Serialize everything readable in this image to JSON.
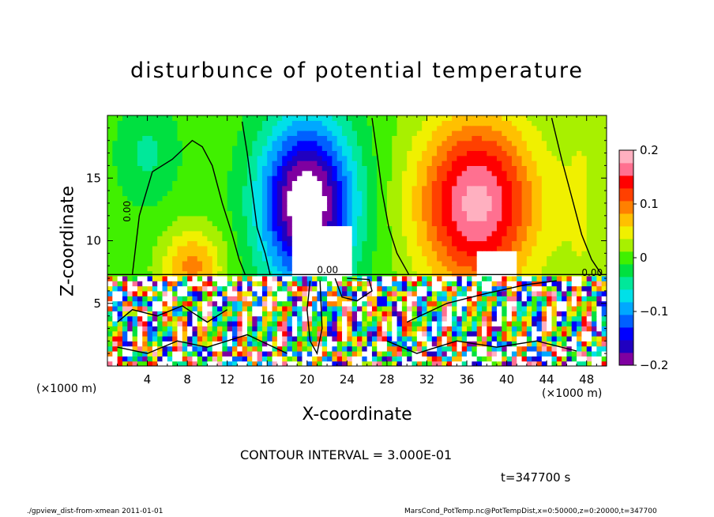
{
  "chart_data": {
    "type": "heatmap",
    "title": "disturbunce of potential temperature",
    "xlabel": "X-coordinate",
    "ylabel": "Z-coordinate",
    "x_unit_label": "(×1000 m)",
    "y_unit_label": "(×1000 m)",
    "xlim": [
      0,
      50
    ],
    "ylim": [
      0,
      20
    ],
    "x_ticks": [
      4,
      8,
      12,
      16,
      20,
      24,
      28,
      32,
      36,
      40,
      44,
      48
    ],
    "y_ticks": [
      5,
      10,
      15
    ],
    "colorbar": {
      "ticks": [
        0.2,
        0.1,
        0,
        -0.1,
        -0.2
      ],
      "tick_labels": [
        "0.2",
        "0.1",
        "0",
        "−0.1",
        "−0.2"
      ],
      "min": -0.2,
      "max": 0.2,
      "colors": [
        "#7f00a0",
        "#2000c0",
        "#0000ff",
        "#0060ff",
        "#00a8ff",
        "#00e0e8",
        "#00e89a",
        "#00e040",
        "#40f000",
        "#a8f000",
        "#f0f000",
        "#ffc000",
        "#ff8000",
        "#ff4000",
        "#ff0000",
        "#ff7090",
        "#ffb0c0"
      ]
    },
    "contour_labels": [
      "0.00",
      "0.00",
      "0.00"
    ],
    "grid": false
  },
  "annotations": {
    "contour_interval": "CONTOUR INTERVAL = 3.000E-01",
    "time": "t=347700 s"
  },
  "footer": {
    "left": "./gpview_dist-from-xmean   2011-01-01",
    "right": "MarsCond_PotTemp.nc@PotTempDist,x=0:50000,z=0:20000,t=347700"
  }
}
